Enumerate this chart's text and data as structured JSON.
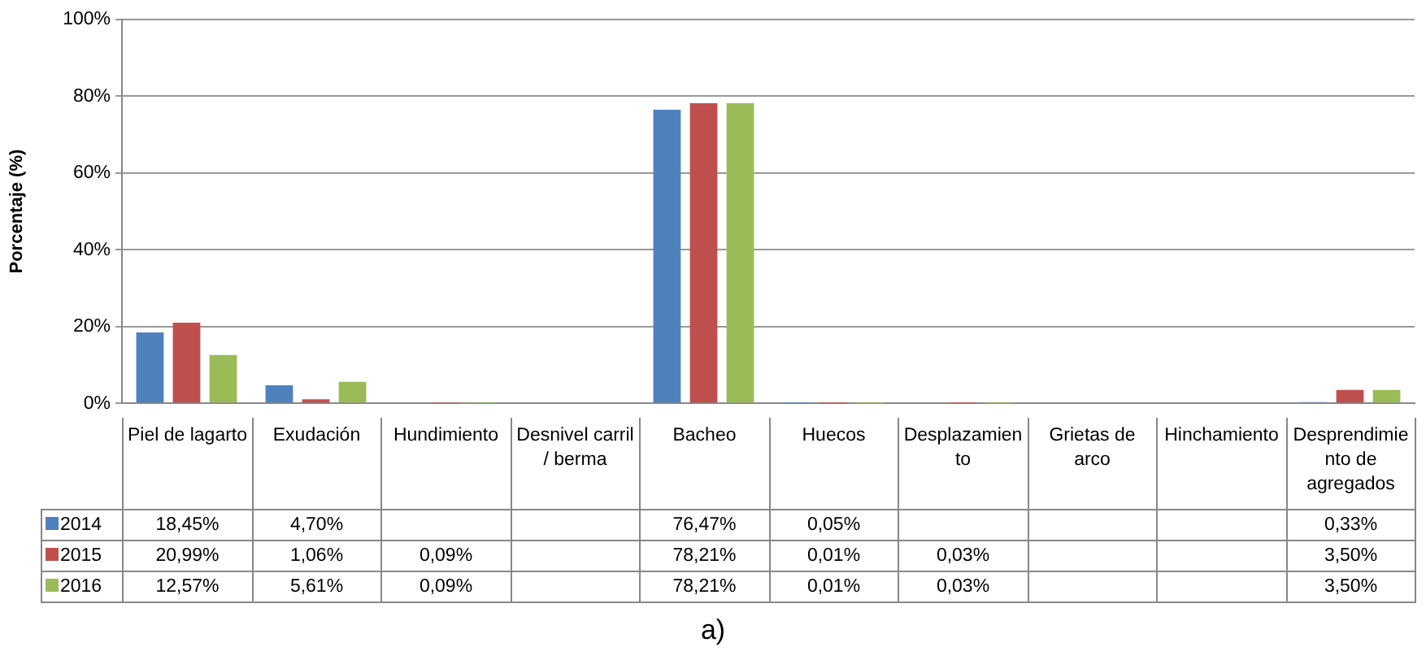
{
  "chart_data": {
    "type": "bar",
    "ylabel": "Porcentaje (%)",
    "categories": [
      "Piel de lagarto",
      "Exudación",
      "Hundimiento",
      "Desnivel carril / berma",
      "Bacheo",
      "Huecos",
      "Desplazamiento",
      "Grietas de arco",
      "Hinchamiento",
      "Desprendimiento de agregados"
    ],
    "series": [
      {
        "name": "2014",
        "color": "#4f81bd",
        "values": [
          18.45,
          4.7,
          null,
          null,
          76.47,
          0.05,
          null,
          null,
          null,
          0.33
        ],
        "value_labels": [
          "18,45%",
          "4,70%",
          null,
          null,
          "76,47%",
          "0,05%",
          null,
          null,
          null,
          "0,33%"
        ]
      },
      {
        "name": "2015",
        "color": "#c0504d",
        "values": [
          20.99,
          1.06,
          0.09,
          null,
          78.21,
          0.01,
          0.03,
          null,
          null,
          3.5
        ],
        "value_labels": [
          "20,99%",
          "1,06%",
          "0,09%",
          null,
          "78,21%",
          "0,01%",
          "0,03%",
          null,
          null,
          "3,50%"
        ]
      },
      {
        "name": "2016",
        "color": "#9bbb59",
        "values": [
          12.57,
          5.61,
          0.09,
          null,
          78.21,
          0.01,
          0.03,
          null,
          null,
          3.5
        ],
        "value_labels": [
          "12,57%",
          "5,61%",
          "0,09%",
          null,
          "78,21%",
          "0,01%",
          "0,03%",
          null,
          null,
          "3,50%"
        ]
      }
    ],
    "ylim": [
      0,
      100
    ],
    "yticks": [
      {
        "value": 0,
        "label": "0%"
      },
      {
        "value": 20,
        "label": "20%"
      },
      {
        "value": 40,
        "label": "40%"
      },
      {
        "value": 60,
        "label": "60%"
      },
      {
        "value": 80,
        "label": "80%"
      },
      {
        "value": 100,
        "label": "100%"
      }
    ],
    "grid": "y",
    "legend": "bottom",
    "data_labels": true,
    "annotations": [
      "a)"
    ]
  }
}
